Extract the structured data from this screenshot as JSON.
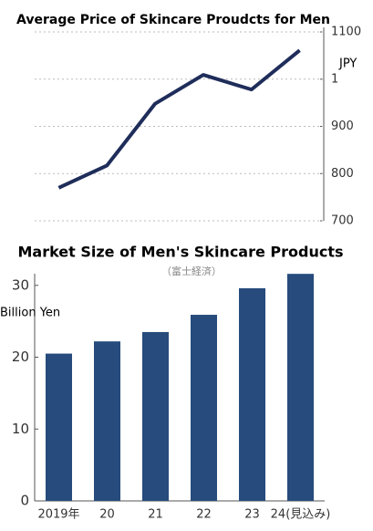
{
  "chart_data": [
    {
      "type": "line",
      "title": "Average Price of Skincare Proudcts for Men",
      "y_label": "JPY",
      "categories": [
        null,
        null,
        null,
        null,
        null,
        null
      ],
      "values": [
        770,
        817,
        948,
        1009,
        978,
        1061
      ],
      "color": "#1f2d5a",
      "ylim": [
        700,
        1100
      ],
      "yticks": [
        700,
        800,
        900,
        {
          "value": 1000,
          "label": "1"
        },
        1100
      ],
      "grid": true
    },
    {
      "type": "bar",
      "title": "Market Size of Men's Skincare Products",
      "subtitle": "（富士経済）",
      "y_label": "Billion Yen",
      "categories": [
        "2019年",
        "20",
        "21",
        "22",
        "23",
        "24(見込み)"
      ],
      "values": [
        20.5,
        22.2,
        23.5,
        25.9,
        29.6,
        31.6
      ],
      "color": "#264b7c",
      "ylim": [
        0,
        32
      ],
      "yticks": [
        0,
        10,
        20,
        30
      ],
      "grid": false
    }
  ]
}
